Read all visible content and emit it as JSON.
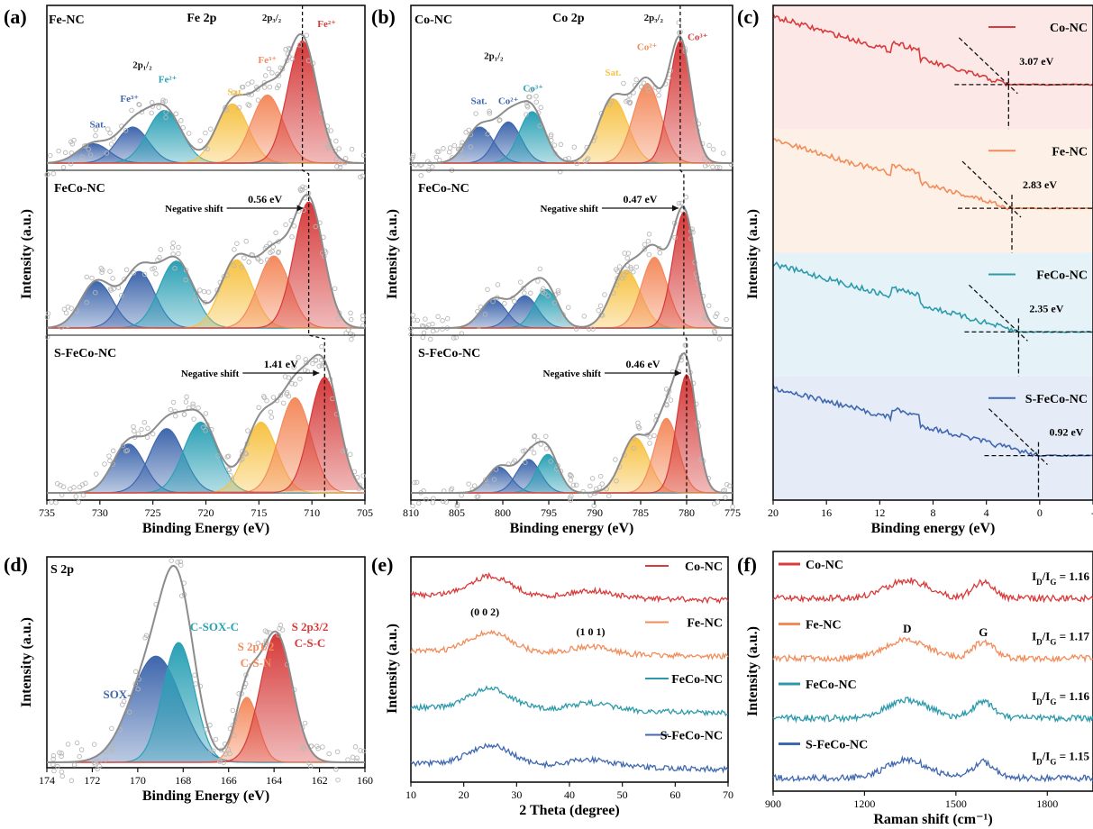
{
  "figure": {
    "colors": {
      "fe2": "#d63a3a",
      "fe3": "#f48a5c",
      "sat": "#f7c244",
      "mid": "#2aa0b5",
      "sat_blue": "#3f67ad",
      "envelope": "#8c8c8c",
      "points": "#b8b8b8",
      "c_red": "#d93a3a",
      "c_orange": "#f28c5a",
      "c_teal": "#2d9aab",
      "c_blue": "#4068b0",
      "bg_red": "#fde8e8",
      "bg_orange": "#fdf0e6",
      "bg_teal": "#e5f3f8",
      "bg_blue": "#e6ecf7"
    }
  },
  "chart_data": [
    {
      "panel": "(a)",
      "type": "line",
      "header_left": "Fe-NC",
      "header_center": "Fe 2p",
      "xlabel": "Binding Energy (eV)",
      "ylabel": "Intensity (a.u.)",
      "xlim": [
        735,
        705
      ],
      "xticks": [
        "735",
        "730",
        "725",
        "720",
        "715",
        "710",
        "705"
      ],
      "series": [
        {
          "name": "Fe-NC",
          "peaks": [
            {
              "center": 730.6,
              "amp": 0.15,
              "width": 1.5,
              "color": "sat_blue"
            },
            {
              "center": 726.9,
              "amp": 0.28,
              "width": 1.5,
              "color": "sat_blue"
            },
            {
              "center": 723.9,
              "amp": 0.41,
              "width": 1.6,
              "color": "mid"
            },
            {
              "center": 717.5,
              "amp": 0.46,
              "width": 1.5,
              "color": "sat"
            },
            {
              "center": 714.2,
              "amp": 0.53,
              "width": 1.5,
              "color": "fe3"
            },
            {
              "center": 710.9,
              "amp": 0.95,
              "width": 1.4,
              "color": "fe2"
            }
          ]
        },
        {
          "name": "FeCo-NC",
          "peaks": [
            {
              "center": 730.3,
              "amp": 0.36,
              "width": 1.5,
              "color": "sat_blue"
            },
            {
              "center": 726.3,
              "amp": 0.44,
              "width": 1.5,
              "color": "sat_blue"
            },
            {
              "center": 722.8,
              "amp": 0.52,
              "width": 1.6,
              "color": "mid"
            },
            {
              "center": 717.1,
              "amp": 0.53,
              "width": 1.5,
              "color": "sat"
            },
            {
              "center": 713.6,
              "amp": 0.56,
              "width": 1.5,
              "color": "fe3"
            },
            {
              "center": 710.3,
              "amp": 0.98,
              "width": 1.4,
              "color": "fe2"
            }
          ]
        },
        {
          "name": "S-FeCo-NC",
          "peaks": [
            {
              "center": 727.3,
              "amp": 0.38,
              "width": 1.5,
              "color": "sat_blue"
            },
            {
              "center": 723.7,
              "amp": 0.5,
              "width": 1.6,
              "color": "sat_blue"
            },
            {
              "center": 720.5,
              "amp": 0.55,
              "width": 1.6,
              "color": "mid"
            },
            {
              "center": 714.8,
              "amp": 0.55,
              "width": 1.5,
              "color": "sat"
            },
            {
              "center": 711.6,
              "amp": 0.74,
              "width": 1.5,
              "color": "fe3"
            },
            {
              "center": 708.8,
              "amp": 0.9,
              "width": 1.4,
              "color": "fe2"
            }
          ]
        }
      ],
      "sample_labels": [
        "Fe-NC",
        "FeCo-NC",
        "S-FeCo-NC"
      ],
      "peak_labels": [
        {
          "text": "Sat.",
          "x": 730.2,
          "row": 0,
          "h": 0.32,
          "color": "sat_blue"
        },
        {
          "text": "Fe³⁺",
          "x": 727.2,
          "row": 0,
          "h": 0.52,
          "color": "sat_blue"
        },
        {
          "text": "2p₁/₂",
          "x": 726.0,
          "row": 0,
          "h": 0.78,
          "color": "ink"
        },
        {
          "text": "Fe²⁺",
          "x": 723.6,
          "row": 0,
          "h": 0.67,
          "color": "mid"
        },
        {
          "text": "Sat.",
          "x": 717.2,
          "row": 0,
          "h": 0.57,
          "color": "sat"
        },
        {
          "text": "Fe³⁺",
          "x": 714.2,
          "row": 0,
          "h": 0.82,
          "color": "fe3"
        },
        {
          "text": "2p₃/₂",
          "x": 713.8,
          "row": 0,
          "h": 1.15,
          "color": "ink"
        },
        {
          "text": "Fe²⁺",
          "x": 708.6,
          "row": 0,
          "h": 1.1,
          "color": "fe2"
        }
      ],
      "shift_annotations": [
        {
          "text": "Negative shift",
          "value": "0.56 eV",
          "row": 1
        },
        {
          "text": "Negative shift",
          "value": "1.41 eV",
          "row": 2
        }
      ]
    },
    {
      "panel": "(b)",
      "type": "line",
      "header_left": "Co-NC",
      "header_center": "Co 2p",
      "xlabel": "Binding energy (eV)",
      "ylabel": "Intensity (a.u.)",
      "xlim": [
        810,
        775
      ],
      "xticks": [
        "810",
        "805",
        "800",
        "795",
        "790",
        "785",
        "780",
        "775"
      ],
      "series": [
        {
          "name": "Co-NC",
          "peaks": [
            {
              "center": 802.5,
              "amp": 0.28,
              "width": 1.5,
              "color": "sat_blue"
            },
            {
              "center": 799.4,
              "amp": 0.32,
              "width": 1.4,
              "color": "sat_blue"
            },
            {
              "center": 796.8,
              "amp": 0.4,
              "width": 1.4,
              "color": "mid"
            },
            {
              "center": 788.0,
              "amp": 0.5,
              "width": 1.6,
              "color": "sat"
            },
            {
              "center": 784.3,
              "amp": 0.62,
              "width": 1.5,
              "color": "fe3"
            },
            {
              "center": 780.7,
              "amp": 0.95,
              "width": 1.2,
              "color": "fe2"
            }
          ]
        },
        {
          "name": "FeCo-NC",
          "peaks": [
            {
              "center": 801.0,
              "amp": 0.22,
              "width": 1.4,
              "color": "sat_blue"
            },
            {
              "center": 797.6,
              "amp": 0.25,
              "width": 1.4,
              "color": "sat_blue"
            },
            {
              "center": 795.3,
              "amp": 0.3,
              "width": 1.3,
              "color": "mid"
            },
            {
              "center": 786.6,
              "amp": 0.45,
              "width": 1.6,
              "color": "sat"
            },
            {
              "center": 783.5,
              "amp": 0.55,
              "width": 1.4,
              "color": "fe3"
            },
            {
              "center": 780.3,
              "amp": 0.9,
              "width": 1.2,
              "color": "fe2"
            }
          ]
        },
        {
          "name": "S-FeCo-NC",
          "peaks": [
            {
              "center": 800.4,
              "amp": 0.2,
              "width": 1.3,
              "color": "sat_blue"
            },
            {
              "center": 797.2,
              "amp": 0.26,
              "width": 1.3,
              "color": "sat_blue"
            },
            {
              "center": 795.1,
              "amp": 0.3,
              "width": 1.2,
              "color": "mid"
            },
            {
              "center": 785.6,
              "amp": 0.43,
              "width": 1.5,
              "color": "sat"
            },
            {
              "center": 782.2,
              "amp": 0.58,
              "width": 1.3,
              "color": "fe3"
            },
            {
              "center": 780.0,
              "amp": 0.92,
              "width": 1.1,
              "color": "fe2"
            }
          ]
        }
      ],
      "sample_labels": [
        "Co-NC",
        "FeCo-NC",
        "S-FeCo-NC"
      ],
      "peak_labels": [
        {
          "text": "Sat.",
          "x": 802.6,
          "row": 0,
          "h": 0.5,
          "color": "sat_blue"
        },
        {
          "text": "2p₁/₂",
          "x": 801.0,
          "row": 0,
          "h": 0.85,
          "color": "ink"
        },
        {
          "text": "Co²⁺",
          "x": 799.4,
          "row": 0,
          "h": 0.5,
          "color": "sat_blue"
        },
        {
          "text": "Co³⁺",
          "x": 796.7,
          "row": 0,
          "h": 0.6,
          "color": "mid"
        },
        {
          "text": "Sat.",
          "x": 788.0,
          "row": 0,
          "h": 0.72,
          "color": "sat"
        },
        {
          "text": "Co²⁺",
          "x": 784.3,
          "row": 0,
          "h": 0.92,
          "color": "fe3"
        },
        {
          "text": "2p₃/₂",
          "x": 783.6,
          "row": 0,
          "h": 1.15,
          "color": "ink"
        },
        {
          "text": "Co³⁺",
          "x": 778.8,
          "row": 0,
          "h": 1.0,
          "color": "fe2"
        }
      ],
      "shift_annotations": [
        {
          "text": "Negative shift",
          "value": "0.47 eV",
          "row": 1
        },
        {
          "text": "Negative shift",
          "value": "0.46 eV",
          "row": 2
        }
      ]
    },
    {
      "panel": "(c)",
      "type": "line",
      "xlabel": "Binding energy (eV)",
      "ylabel": "Intensity (a.u.)",
      "xlim": [
        20,
        -3
      ],
      "xticks": [
        "20",
        "16",
        "12",
        "8",
        "4",
        "0",
        "-"
      ],
      "series": [
        {
          "name": "Co-NC",
          "edge": 3.07,
          "color": "c_red",
          "bg": "bg_red",
          "label": "3.07 eV"
        },
        {
          "name": "Fe-NC",
          "edge": 2.83,
          "color": "c_orange",
          "bg": "bg_orange",
          "label": "2.83 eV"
        },
        {
          "name": "FeCo-NC",
          "edge": 2.35,
          "color": "c_teal",
          "bg": "bg_teal",
          "label": "2.35 eV"
        },
        {
          "name": "S-FeCo-NC",
          "edge": 0.92,
          "color": "c_blue",
          "bg": "bg_blue",
          "label": "0.92 eV"
        }
      ]
    },
    {
      "panel": "(d)",
      "type": "line",
      "header_left": "S 2p",
      "xlabel": "Binding Energy (eV)",
      "ylabel": "Intensity (a.u.)",
      "xlim": [
        174,
        160
      ],
      "xticks": [
        "174",
        "172",
        "170",
        "168",
        "166",
        "164",
        "162",
        "160"
      ],
      "peaks": [
        {
          "name": "SOX",
          "center": 169.2,
          "amp": 0.62,
          "width": 1.1,
          "color": "sat_blue"
        },
        {
          "name": "C-SOX-C",
          "center": 168.2,
          "amp": 0.7,
          "width": 0.7,
          "color": "mid"
        },
        {
          "name": "S 2p1/2 C-S-N",
          "center": 165.2,
          "amp": 0.38,
          "width": 0.5,
          "color": "fe3"
        },
        {
          "name": "S 2p3/2 C-S-C",
          "center": 163.9,
          "amp": 0.75,
          "width": 0.7,
          "color": "fe2"
        }
      ],
      "labels": [
        "SOX-",
        "C-SOX-C",
        "S 2p1/2",
        "C-S-N",
        "S 2p3/2",
        "C-S-C"
      ]
    },
    {
      "panel": "(e)",
      "type": "line",
      "xlabel": "2 Theta (degree)",
      "ylabel": "Intensity (a.u.)",
      "xlim": [
        10,
        70
      ],
      "xticks": [
        "10",
        "20",
        "30",
        "40",
        "50",
        "60",
        "70"
      ],
      "series": [
        {
          "name": "Co-NC",
          "color": "c_red"
        },
        {
          "name": "Fe-NC",
          "color": "c_orange"
        },
        {
          "name": "FeCo-NC",
          "color": "c_teal"
        },
        {
          "name": "S-FeCo-NC",
          "color": "c_blue"
        }
      ],
      "annotations": [
        "(0 0 2)",
        "(1 0 1)"
      ],
      "peaks_2theta": [
        25,
        44
      ]
    },
    {
      "panel": "(f)",
      "type": "line",
      "xlabel": "Raman shift (cm⁻¹)",
      "ylabel": "Intensity (a.u.)",
      "xlim": [
        900,
        1950
      ],
      "xticks": [
        "900",
        "1200",
        "1500",
        "1800"
      ],
      "series": [
        {
          "name": "Co-NC",
          "color": "c_red",
          "ratio": "1.16"
        },
        {
          "name": "Fe-NC",
          "color": "c_orange",
          "ratio": "1.17"
        },
        {
          "name": "FeCo-NC",
          "color": "c_teal",
          "ratio": "1.16"
        },
        {
          "name": "S-FeCo-NC",
          "color": "c_blue",
          "ratio": "1.15"
        }
      ],
      "band_labels": [
        "D",
        "G"
      ],
      "band_positions": [
        1340,
        1590
      ]
    }
  ]
}
